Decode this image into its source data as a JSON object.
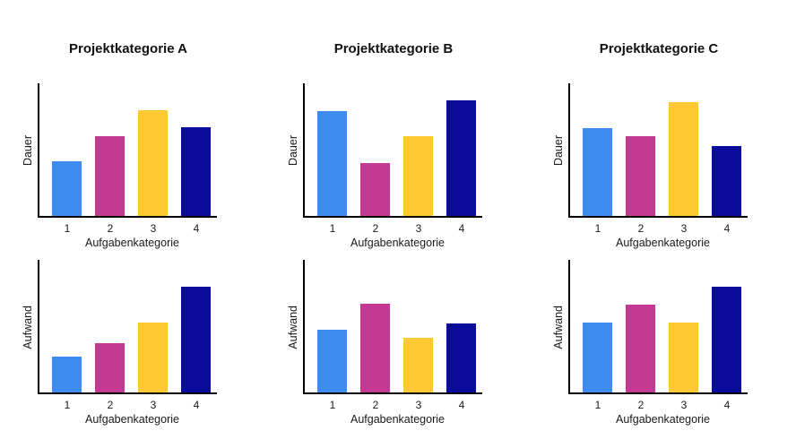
{
  "page": {
    "background": "#ffffff"
  },
  "palette": {
    "bar_colors": [
      "#3E8CF2",
      "#C43A92",
      "#FFC933",
      "#0A0A9B"
    ],
    "axis_color": "#000000",
    "text_color": "#1a1a1a"
  },
  "chart_data": [
    {
      "type": "bar",
      "title": "Projektkategorie A",
      "xlabel": "Aufgabenkategorie",
      "ylabel": "Dauer",
      "categories": [
        "1",
        "2",
        "3",
        "4"
      ],
      "values": [
        41,
        60,
        80,
        67
      ],
      "ylim": [
        0,
        100
      ],
      "grid": false,
      "legend": "none",
      "bar_colors": [
        "#3E8CF2",
        "#C43A92",
        "#FFC933",
        "#0A0A9B"
      ]
    },
    {
      "type": "bar",
      "title": "Projektkategorie B",
      "xlabel": "Aufgabenkategorie",
      "ylabel": "Dauer",
      "categories": [
        "1",
        "2",
        "3",
        "4"
      ],
      "values": [
        79,
        40,
        60,
        87
      ],
      "ylim": [
        0,
        100
      ],
      "grid": false,
      "legend": "none",
      "bar_colors": [
        "#3E8CF2",
        "#C43A92",
        "#FFC933",
        "#0A0A9B"
      ]
    },
    {
      "type": "bar",
      "title": "Projektkategorie C",
      "xlabel": "Aufgabenkategorie",
      "ylabel": "Dauer",
      "categories": [
        "1",
        "2",
        "3",
        "4"
      ],
      "values": [
        66,
        60,
        86,
        53
      ],
      "ylim": [
        0,
        100
      ],
      "grid": false,
      "legend": "none",
      "bar_colors": [
        "#3E8CF2",
        "#C43A92",
        "#FFC933",
        "#0A0A9B"
      ]
    },
    {
      "type": "bar",
      "title": "",
      "xlabel": "Aufgabenkategorie",
      "ylabel": "Aufwand",
      "categories": [
        "1",
        "2",
        "3",
        "4"
      ],
      "values": [
        27,
        37,
        53,
        80
      ],
      "ylim": [
        0,
        100
      ],
      "grid": false,
      "legend": "none",
      "bar_colors": [
        "#3E8CF2",
        "#C43A92",
        "#FFC933",
        "#0A0A9B"
      ]
    },
    {
      "type": "bar",
      "title": "",
      "xlabel": "Aufgabenkategorie",
      "ylabel": "Aufwand",
      "categories": [
        "1",
        "2",
        "3",
        "4"
      ],
      "values": [
        47,
        67,
        41,
        52
      ],
      "ylim": [
        0,
        100
      ],
      "grid": false,
      "legend": "none",
      "bar_colors": [
        "#3E8CF2",
        "#C43A92",
        "#FFC933",
        "#0A0A9B"
      ]
    },
    {
      "type": "bar",
      "title": "",
      "xlabel": "Aufgabenkategorie",
      "ylabel": "Aufwand",
      "categories": [
        "1",
        "2",
        "3",
        "4"
      ],
      "values": [
        53,
        66,
        53,
        80
      ],
      "ylim": [
        0,
        100
      ],
      "grid": false,
      "legend": "none",
      "bar_colors": [
        "#3E8CF2",
        "#C43A92",
        "#FFC933",
        "#0A0A9B"
      ]
    }
  ]
}
